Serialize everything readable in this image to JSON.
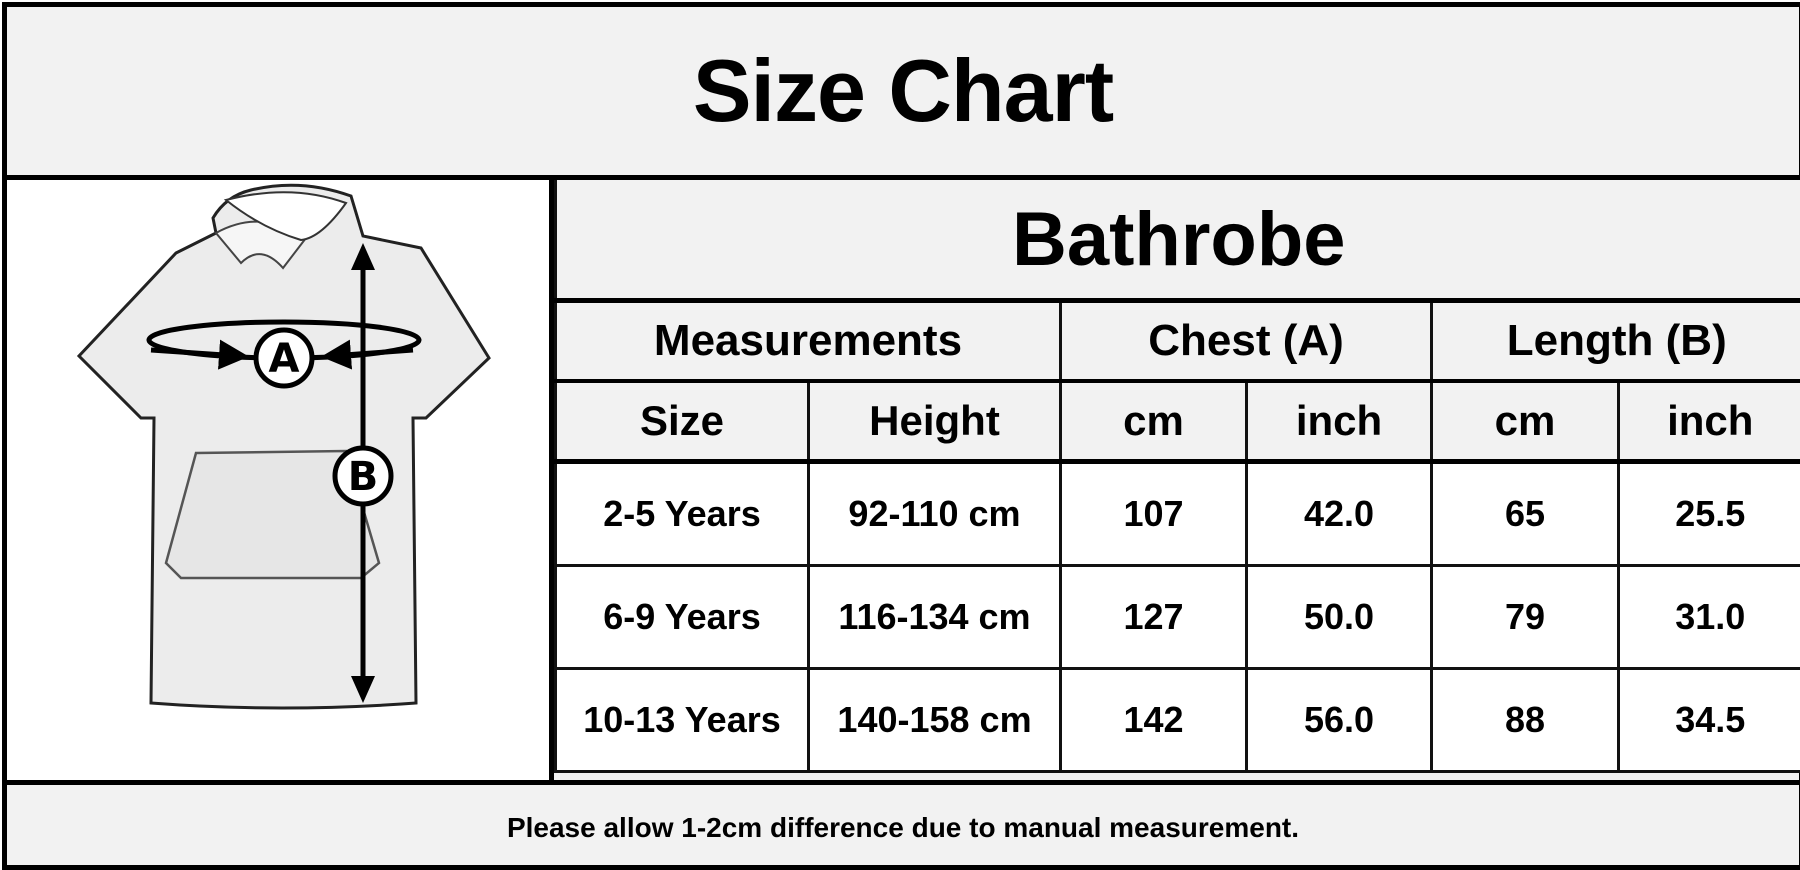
{
  "title": "Size Chart",
  "illustration": {
    "label_a": "A",
    "label_b": "B",
    "icon": "hooded-poncho-illustration"
  },
  "table": {
    "product": "Bathrobe",
    "group_headers": [
      "Measurements",
      "Chest (A)",
      "Length (B)"
    ],
    "sub_headers": [
      "Size",
      "Height",
      "cm",
      "inch",
      "cm",
      "inch"
    ],
    "rows": [
      [
        "2-5 Years",
        "92-110 cm",
        "107",
        "42.0",
        "65",
        "25.5"
      ],
      [
        "6-9 Years",
        "116-134 cm",
        "127",
        "50.0",
        "79",
        "31.0"
      ],
      [
        "10-13 Years",
        "140-158 cm",
        "142",
        "56.0",
        "88",
        "34.5"
      ]
    ]
  },
  "footer": "Please allow 1-2cm difference due to manual measurement."
}
